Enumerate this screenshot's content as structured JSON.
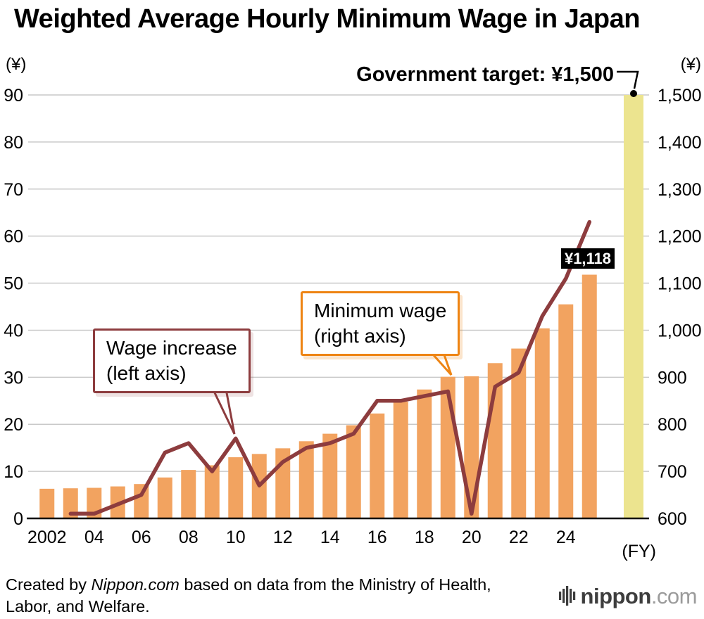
{
  "title": "Weighted Average Hourly Minimum Wage in Japan",
  "axes": {
    "left_unit": "(¥)",
    "right_unit": "(¥)",
    "fy_label": "(FY)"
  },
  "annotations": {
    "gov_target": "Government target: ¥1,500",
    "value_label": "¥1,118",
    "callout_left_line1": "Wage increase",
    "callout_left_line2": "(left axis)",
    "callout_right_line1": "Minimum wage",
    "callout_right_line2": "(right axis)"
  },
  "footer": {
    "prefix": "Created by ",
    "brand": "Nippon.com",
    "suffix": " based on data from the Ministry of Health,",
    "line2": "Labor, and Welfare."
  },
  "logo": {
    "name": "nippon",
    "tld": ".com"
  },
  "colors": {
    "bar": "#f2a360",
    "target_bar": "#ece48f",
    "line": "#8d3c3e",
    "grid": "#c9c9c9",
    "axis": "#000000",
    "callout_left_border": "#8d3c3e",
    "callout_right_border": "#ee8413",
    "value_label_bg": "#000000"
  },
  "chart_data": {
    "type": "bar",
    "title": "Weighted Average Hourly Minimum Wage in Japan",
    "categories": [
      "2002",
      "2003",
      "2004",
      "2005",
      "2006",
      "2007",
      "2008",
      "2009",
      "2010",
      "2011",
      "2012",
      "2013",
      "2014",
      "2015",
      "2016",
      "2017",
      "2018",
      "2019",
      "2020",
      "2021",
      "2022",
      "2023",
      "2024",
      "2025"
    ],
    "series": [
      {
        "name": "Minimum wage (right axis)",
        "type": "bar",
        "axis": "right",
        "values": [
          663,
          664,
          665,
          668,
          673,
          687,
          703,
          713,
          730,
          737,
          749,
          764,
          780,
          798,
          823,
          848,
          874,
          901,
          902,
          930,
          961,
          1004,
          1055,
          1118
        ]
      },
      {
        "name": "Wage increase (left axis)",
        "type": "line",
        "axis": "left",
        "values": [
          null,
          1,
          1,
          3,
          5,
          14,
          16,
          10,
          17,
          7,
          12,
          15,
          16,
          18,
          25,
          25,
          26,
          27,
          1,
          28,
          31,
          43,
          51,
          63
        ]
      }
    ],
    "target": {
      "label": "Government target: ¥1,500",
      "value": 1500
    },
    "latest_value_label": "¥1,118",
    "left_axis": {
      "label": "(¥)",
      "min": 0,
      "max": 90,
      "tick_step": 10
    },
    "right_axis": {
      "label": "(¥)",
      "min": 600,
      "max": 1500,
      "tick_step": 100
    },
    "x_tick_labels": [
      {
        "index": 0,
        "label": "2002"
      },
      {
        "index": 2,
        "label": "04"
      },
      {
        "index": 4,
        "label": "06"
      },
      {
        "index": 6,
        "label": "08"
      },
      {
        "index": 8,
        "label": "10"
      },
      {
        "index": 10,
        "label": "12"
      },
      {
        "index": 12,
        "label": "14"
      },
      {
        "index": 14,
        "label": "16"
      },
      {
        "index": 16,
        "label": "18"
      },
      {
        "index": 18,
        "label": "20"
      },
      {
        "index": 20,
        "label": "22"
      },
      {
        "index": 22,
        "label": "24"
      }
    ],
    "xlabel": "(FY)",
    "grid": true,
    "legend_position": "none"
  }
}
